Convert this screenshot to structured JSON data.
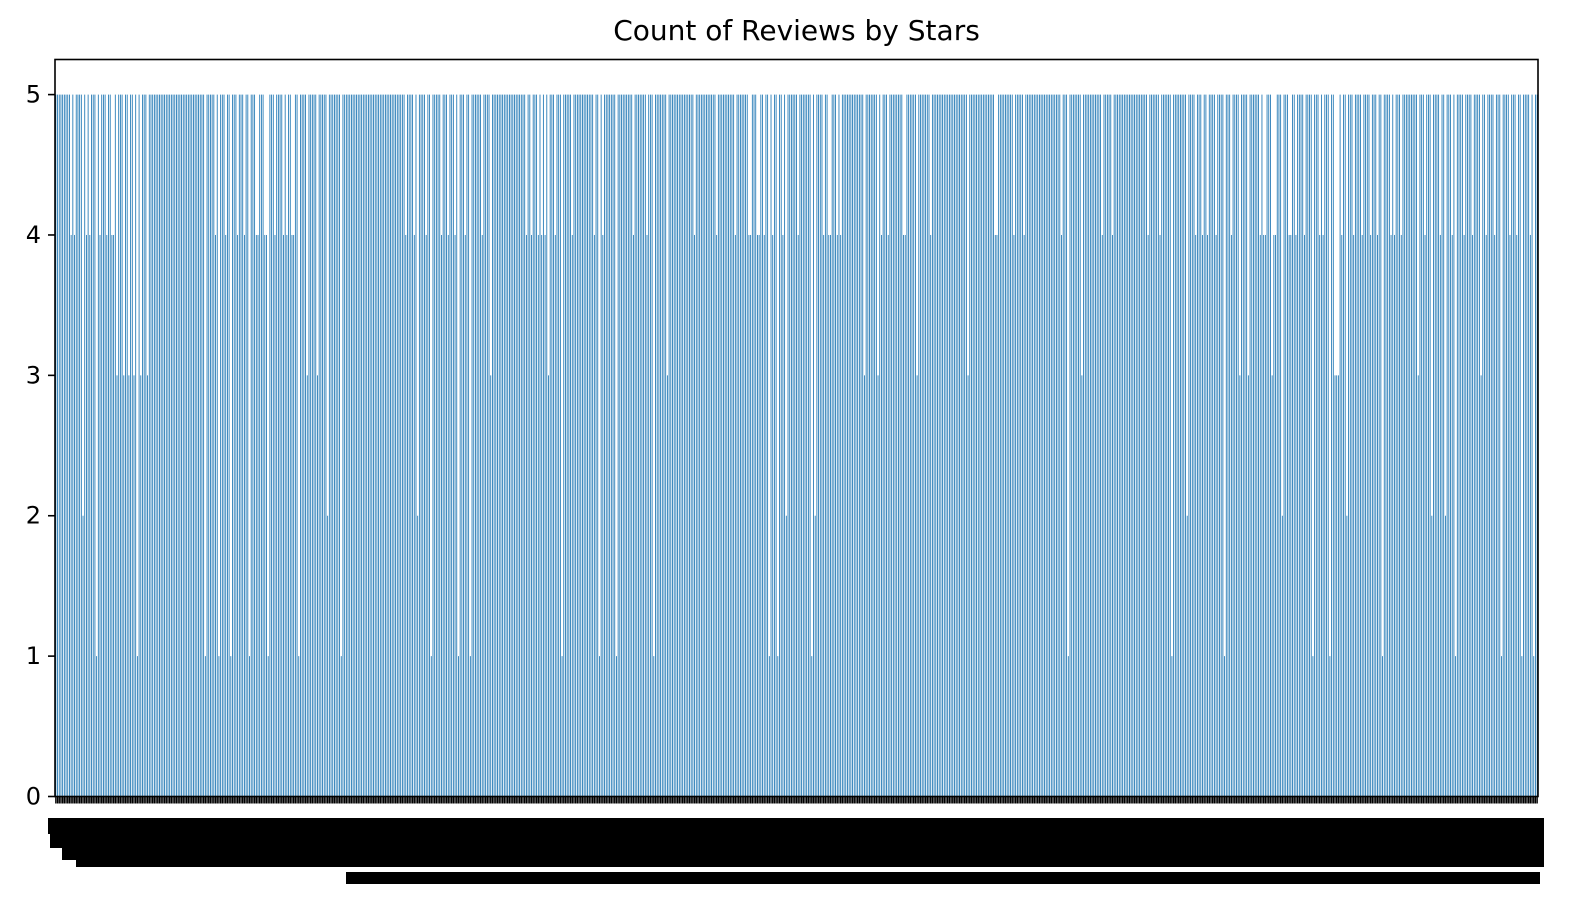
{
  "chart_data": {
    "type": "bar",
    "title": "Count of Reviews by Stars",
    "xlabel": "",
    "ylabel": "",
    "ylim": [
      0,
      5.25
    ],
    "yticks": [
      0,
      1,
      2,
      3,
      4,
      5
    ],
    "bar_color": "#1f77b4",
    "x_tick_labels_legible": false,
    "grid": false,
    "values": [
      5,
      5,
      5,
      5,
      5,
      5,
      5,
      5,
      5,
      4,
      5,
      4,
      5,
      5,
      5,
      5,
      2,
      5,
      4,
      5,
      4,
      5,
      5,
      5,
      1,
      5,
      4,
      5,
      5,
      5,
      4,
      5,
      5,
      4,
      4,
      5,
      3,
      5,
      5,
      5,
      3,
      5,
      5,
      3,
      5,
      5,
      3,
      5,
      1,
      5,
      3,
      5,
      5,
      5,
      3,
      5,
      5,
      5,
      5,
      5,
      5,
      5,
      5,
      5,
      5,
      5,
      5,
      5,
      5,
      5,
      5,
      5,
      5,
      5,
      5,
      5,
      5,
      5,
      5,
      5,
      5,
      5,
      5,
      5,
      5,
      5,
      5,
      5,
      1,
      5,
      5,
      5,
      5,
      5,
      4,
      5,
      1,
      5,
      5,
      5,
      4,
      5,
      5,
      1,
      5,
      5,
      5,
      4,
      5,
      5,
      5,
      4,
      5,
      5,
      1,
      5,
      5,
      5,
      4,
      4,
      5,
      5,
      5,
      4,
      4,
      1,
      5,
      5,
      5,
      4,
      5,
      5,
      5,
      5,
      4,
      5,
      4,
      5,
      5,
      4,
      4,
      5,
      5,
      1,
      5,
      5,
      5,
      5,
      3,
      5,
      5,
      5,
      5,
      5,
      3,
      5,
      5,
      5,
      5,
      5,
      2,
      5,
      5,
      5,
      5,
      5,
      5,
      5,
      1,
      5,
      5,
      5,
      5,
      5,
      5,
      5,
      5,
      5,
      5,
      5,
      5,
      5,
      5,
      5,
      5,
      5,
      5,
      5,
      5,
      5,
      5,
      5,
      5,
      5,
      5,
      5,
      5,
      5,
      5,
      5,
      5,
      5,
      5,
      5,
      5,
      5,
      4,
      5,
      5,
      5,
      5,
      4,
      5,
      2,
      5,
      5,
      5,
      5,
      4,
      5,
      5,
      1,
      5,
      5,
      5,
      5,
      5,
      4,
      5,
      5,
      5,
      4,
      5,
      5,
      5,
      4,
      5,
      1,
      5,
      5,
      5,
      4,
      5,
      5,
      1,
      5,
      5,
      5,
      5,
      5,
      5,
      4,
      5,
      5,
      5,
      5,
      3,
      5,
      5,
      5,
      5,
      5,
      5,
      5,
      5,
      5,
      5,
      5,
      5,
      5,
      5,
      5,
      5,
      5,
      5,
      5,
      5,
      4,
      5,
      5,
      4,
      5,
      5,
      5,
      4,
      5,
      4,
      5,
      4,
      5,
      3,
      5,
      5,
      5,
      4,
      5,
      5,
      5,
      1,
      5,
      5,
      5,
      5,
      5,
      4,
      5,
      5,
      5,
      5,
      5,
      5,
      5,
      5,
      5,
      5,
      5,
      5,
      4,
      5,
      5,
      1,
      5,
      4,
      5,
      5,
      5,
      5,
      5,
      5,
      5,
      1,
      5,
      5,
      5,
      5,
      5,
      5,
      5,
      5,
      5,
      4,
      5,
      5,
      5,
      5,
      5,
      5,
      5,
      4,
      5,
      5,
      5,
      1,
      5,
      5,
      5,
      5,
      5,
      5,
      5,
      3,
      5,
      5,
      5,
      5,
      5,
      5,
      5,
      5,
      5,
      5,
      5,
      5,
      5,
      5,
      5,
      4,
      5,
      5,
      5,
      5,
      5,
      5,
      5,
      5,
      5,
      5,
      5,
      5,
      4,
      5,
      5,
      5,
      5,
      5,
      5,
      5,
      5,
      5,
      5,
      4,
      5,
      5,
      5,
      5,
      5,
      5,
      5,
      4,
      4,
      5,
      5,
      5,
      4,
      4,
      5,
      5,
      4,
      5,
      5,
      1,
      5,
      4,
      5,
      5,
      1,
      5,
      5,
      4,
      5,
      2,
      5,
      5,
      5,
      5,
      5,
      5,
      4,
      5,
      5,
      5,
      5,
      5,
      5,
      5,
      1,
      5,
      2,
      5,
      5,
      5,
      5,
      4,
      5,
      5,
      4,
      4,
      5,
      5,
      5,
      4,
      5,
      4,
      5,
      5,
      5,
      5,
      5,
      5,
      5,
      5,
      5,
      5,
      5,
      5,
      5,
      3,
      5,
      5,
      5,
      5,
      5,
      5,
      5,
      3,
      5,
      4,
      5,
      5,
      5,
      4,
      5,
      5,
      5,
      5,
      5,
      5,
      5,
      5,
      4,
      4,
      5,
      5,
      5,
      5,
      5,
      5,
      3,
      5,
      5,
      5,
      5,
      5,
      5,
      5,
      4,
      5,
      5,
      5,
      5,
      5,
      5,
      5,
      5,
      5,
      5,
      5,
      5,
      5,
      5,
      5,
      5,
      5,
      5,
      5,
      5,
      5,
      3,
      5,
      5,
      5,
      5,
      5,
      5,
      5,
      5,
      5,
      5,
      5,
      5,
      5,
      5,
      5,
      4,
      4,
      5,
      5,
      5,
      5,
      5,
      5,
      5,
      5,
      5,
      4,
      5,
      5,
      5,
      5,
      5,
      4,
      5,
      5,
      5,
      5,
      5,
      5,
      5,
      5,
      5,
      5,
      5,
      5,
      5,
      5,
      5,
      5,
      5,
      5,
      5,
      5,
      5,
      4,
      5,
      5,
      5,
      1,
      5,
      5,
      5,
      5,
      5,
      5,
      5,
      3,
      5,
      5,
      5,
      5,
      5,
      5,
      5,
      5,
      5,
      5,
      5,
      4,
      5,
      5,
      5,
      5,
      5,
      4,
      5,
      5,
      5,
      5,
      5,
      5,
      5,
      5,
      5,
      5,
      5,
      5,
      5,
      5,
      5,
      5,
      5,
      5,
      5,
      5,
      4,
      5,
      5,
      5,
      5,
      5,
      5,
      4,
      5,
      5,
      5,
      5,
      5,
      5,
      1,
      5,
      5,
      5,
      5,
      5,
      5,
      5,
      5,
      2,
      5,
      5,
      5,
      5,
      4,
      5,
      5,
      5,
      4,
      5,
      5,
      4,
      5,
      5,
      5,
      5,
      4,
      5,
      5,
      5,
      5,
      1,
      5,
      5,
      5,
      4,
      5,
      5,
      5,
      5,
      3,
      5,
      5,
      5,
      5,
      3,
      5,
      5,
      5,
      5,
      5,
      5,
      4,
      5,
      4,
      4,
      5,
      5,
      5,
      3,
      4,
      4,
      5,
      5,
      5,
      2,
      5,
      5,
      5,
      4,
      4,
      5,
      5,
      4,
      5,
      5,
      5,
      5,
      4,
      5,
      5,
      5,
      5,
      1,
      5,
      5,
      5,
      4,
      5,
      4,
      5,
      5,
      5,
      1,
      5,
      5,
      3,
      3,
      3,
      5,
      4,
      5,
      5,
      2,
      5,
      5,
      5,
      4,
      5,
      5,
      5,
      5,
      4,
      5,
      5,
      5,
      5,
      4,
      5,
      5,
      5,
      4,
      5,
      5,
      1,
      5,
      5,
      5,
      5,
      4,
      5,
      4,
      5,
      5,
      5,
      4,
      5,
      5,
      5,
      5,
      5,
      5,
      5,
      5,
      5,
      3,
      5,
      5,
      5,
      4,
      5,
      5,
      5,
      2,
      5,
      5,
      5,
      5,
      4,
      5,
      5,
      2,
      5,
      5,
      5,
      4,
      5,
      1,
      5,
      5,
      5,
      5,
      4,
      5,
      5,
      5,
      5,
      4,
      5,
      5,
      5,
      5,
      3,
      5,
      5,
      4,
      5,
      5,
      5,
      5,
      4,
      5,
      5,
      5,
      1,
      5,
      5,
      5,
      5,
      4,
      5,
      5,
      5,
      4,
      5,
      5,
      1,
      5,
      5,
      5,
      5,
      4,
      5,
      1,
      5,
      5
    ]
  }
}
